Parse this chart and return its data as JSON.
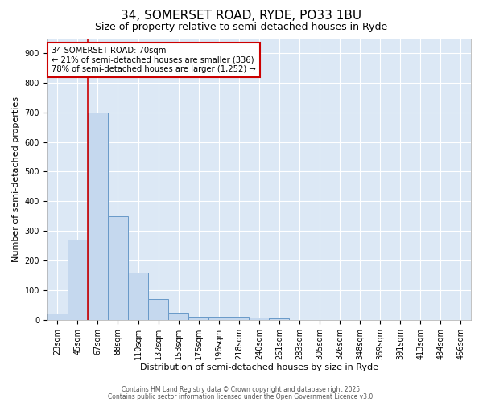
{
  "title": "34, SOMERSET ROAD, RYDE, PO33 1BU",
  "subtitle": "Size of property relative to semi-detached houses in Ryde",
  "xlabel": "Distribution of semi-detached houses by size in Ryde",
  "ylabel": "Number of semi-detached properties",
  "bin_labels": [
    "23sqm",
    "45sqm",
    "67sqm",
    "88sqm",
    "110sqm",
    "132sqm",
    "153sqm",
    "175sqm",
    "196sqm",
    "218sqm",
    "240sqm",
    "261sqm",
    "283sqm",
    "305sqm",
    "326sqm",
    "348sqm",
    "369sqm",
    "391sqm",
    "413sqm",
    "434sqm",
    "456sqm"
  ],
  "bar_heights": [
    20,
    270,
    700,
    350,
    160,
    70,
    25,
    10,
    10,
    10,
    8,
    5,
    0,
    0,
    0,
    0,
    0,
    0,
    0,
    0,
    0
  ],
  "bar_color": "#c5d8ee",
  "bar_edge_color": "#6899c8",
  "bar_edge_width": 0.7,
  "plot_bg_color": "#dce8f5",
  "fig_bg_color": "#ffffff",
  "grid_color": "#ffffff",
  "property_line_color": "#cc0000",
  "property_line_bin_index": 2,
  "annotation_line1": "34 SOMERSET ROAD: 70sqm",
  "annotation_line2": "← 21% of semi-detached houses are smaller (336)",
  "annotation_line3": "78% of semi-detached houses are larger (1,252) →",
  "annotation_box_color": "#cc0000",
  "annotation_fill": "#ffffff",
  "ylim": [
    0,
    950
  ],
  "yticks": [
    0,
    100,
    200,
    300,
    400,
    500,
    600,
    700,
    800,
    900
  ],
  "title_fontsize": 11,
  "subtitle_fontsize": 9,
  "axis_label_fontsize": 8,
  "tick_fontsize": 7,
  "footer1": "Contains HM Land Registry data © Crown copyright and database right 2025.",
  "footer2": "Contains public sector information licensed under the Open Government Licence v3.0."
}
